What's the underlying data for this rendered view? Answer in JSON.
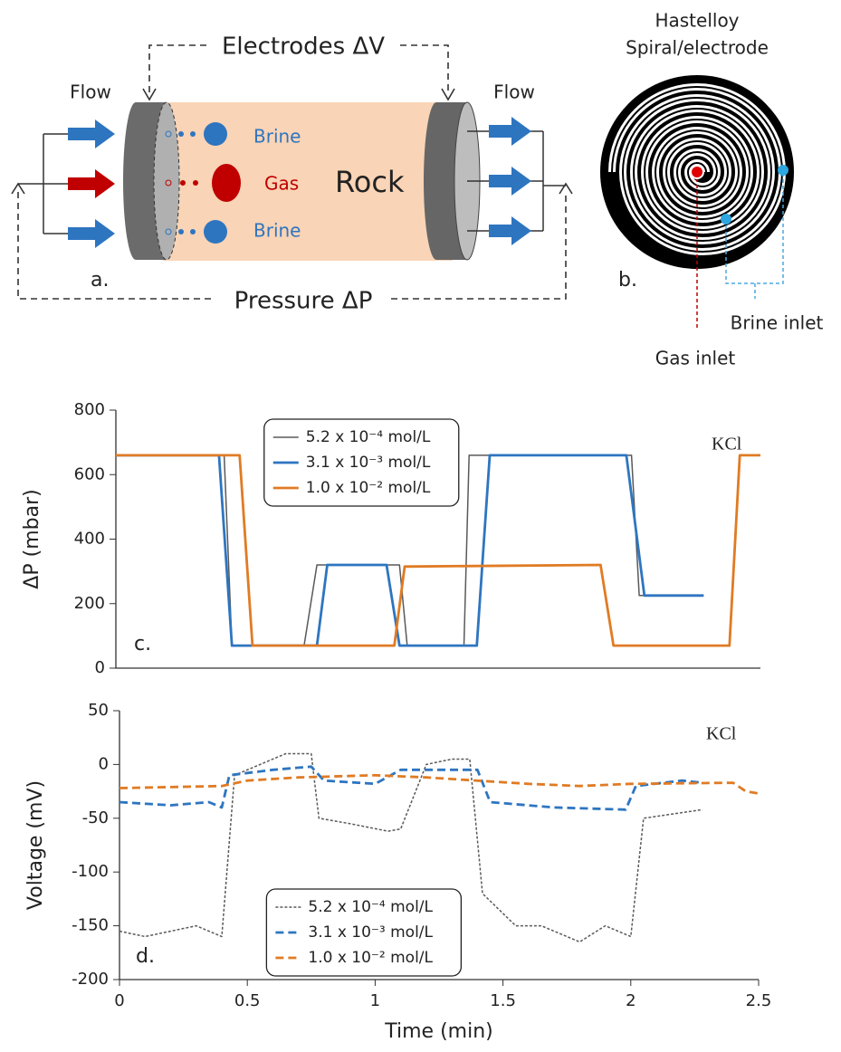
{
  "diagram_a": {
    "electrodes": "Electrodes ΔV",
    "pressure": "Pressure ΔP",
    "flow_in": "Flow",
    "flow_out": "Flow",
    "brine_top": "Brine",
    "gas": "Gas",
    "brine_bottom": "Brine",
    "rock": "Rock",
    "panel": "a."
  },
  "diagram_b": {
    "title_line1": "Hastelloy",
    "title_line2": "Spiral/electrode",
    "panel": "b.",
    "brine_inlet": "Brine inlet",
    "gas_inlet": "Gas inlet"
  },
  "chart_data": [
    {
      "type": "line",
      "ylabel": "ΔP (mbar)",
      "annotations": [
        "KCl",
        "c."
      ],
      "xlim": [
        0,
        2.5
      ],
      "ylim": [
        0,
        800
      ],
      "yticks": [
        0,
        200,
        400,
        600,
        800
      ],
      "legend": "upper center",
      "series": [
        {
          "name": "5.2 x 10⁻⁴ mol/L",
          "color": "#595959",
          "line_style": "solid",
          "linewidth": 1.5,
          "x": [
            0,
            0.42,
            0.45,
            0.73,
            0.78,
            1.1,
            1.13,
            1.35,
            1.37,
            2.0,
            2.03,
            2.28
          ],
          "values": [
            660,
            660,
            70,
            70,
            320,
            320,
            70,
            70,
            660,
            660,
            225,
            225
          ]
        },
        {
          "name": "3.1 x 10⁻³ mol/L",
          "color": "#2e75c0",
          "line_style": "solid",
          "linewidth": 2.8,
          "x": [
            0,
            0.4,
            0.45,
            0.78,
            0.82,
            1.05,
            1.1,
            1.4,
            1.45,
            1.98,
            2.05,
            2.28
          ],
          "values": [
            660,
            660,
            70,
            70,
            320,
            320,
            70,
            70,
            660,
            660,
            225,
            225
          ]
        },
        {
          "name": "1.0 x 10⁻² mol/L",
          "color": "#e07b24",
          "line_style": "solid",
          "linewidth": 2.8,
          "x": [
            0,
            0.48,
            0.53,
            1.08,
            1.12,
            1.88,
            1.93,
            2.38,
            2.42,
            2.5
          ],
          "values": [
            660,
            660,
            70,
            70,
            315,
            320,
            70,
            70,
            660,
            660
          ]
        }
      ]
    },
    {
      "type": "line",
      "xlabel": "Time (min)",
      "ylabel": "Voltage (mV)",
      "annotations": [
        "KCl",
        "d."
      ],
      "xlim": [
        0,
        2.5
      ],
      "xticks": [
        0,
        0.5,
        1,
        1.5,
        2,
        2.5
      ],
      "ylim": [
        -200,
        50
      ],
      "yticks": [
        -200,
        -150,
        -100,
        -50,
        0,
        50
      ],
      "legend": "lower center",
      "series": [
        {
          "name": "5.2 x 10⁻⁴ mol/L",
          "color": "#595959",
          "line_style": "dotted",
          "linewidth": 1.5,
          "x": [
            0,
            0.1,
            0.3,
            0.4,
            0.45,
            0.55,
            0.65,
            0.75,
            0.78,
            0.9,
            1.05,
            1.1,
            1.2,
            1.3,
            1.37,
            1.42,
            1.55,
            1.65,
            1.8,
            1.9,
            2.0,
            2.05,
            2.28
          ],
          "values": [
            -155,
            -160,
            -150,
            -160,
            -10,
            0,
            10,
            10,
            -50,
            -55,
            -62,
            -60,
            0,
            5,
            5,
            -120,
            -150,
            -150,
            -165,
            -150,
            -160,
            -50,
            -42
          ]
        },
        {
          "name": "3.1 x 10⁻³ mol/L",
          "color": "#2e75c0",
          "line_style": "dashed",
          "linewidth": 2.8,
          "x": [
            0,
            0.2,
            0.35,
            0.4,
            0.43,
            0.6,
            0.75,
            0.8,
            1.0,
            1.1,
            1.4,
            1.45,
            1.7,
            1.98,
            2.02,
            2.2,
            2.28
          ],
          "values": [
            -35,
            -38,
            -35,
            -40,
            -10,
            -5,
            -2,
            -15,
            -18,
            -5,
            -5,
            -35,
            -40,
            -42,
            -20,
            -15,
            -17
          ]
        },
        {
          "name": "1.0 x 10⁻² mol/L",
          "color": "#e07b24",
          "line_style": "dashed",
          "linewidth": 2.8,
          "x": [
            0,
            0.4,
            0.5,
            0.7,
            1.0,
            1.2,
            1.6,
            1.8,
            2.0,
            2.4,
            2.45,
            2.5
          ],
          "values": [
            -22,
            -20,
            -15,
            -12,
            -10,
            -12,
            -18,
            -20,
            -18,
            -17,
            -25,
            -27
          ]
        }
      ]
    }
  ]
}
